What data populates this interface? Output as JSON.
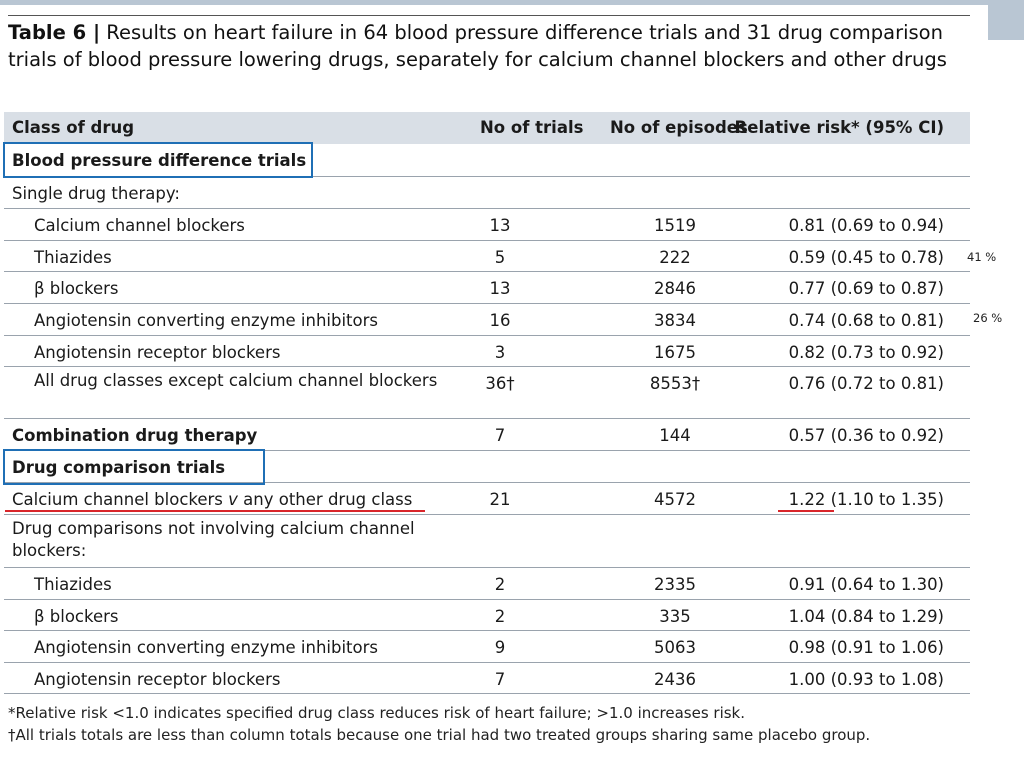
{
  "table": {
    "number": "Table 6 |",
    "title": " Results on heart failure in 64 blood pressure difference trials and 31 drug comparison trials of blood pressure lowering drugs, separately for calcium channel blockers and other drugs",
    "columns": {
      "class": "Class of drug",
      "trials": "No of trials",
      "episodes": "No of episodes",
      "rr": "Relative risk* (95% CI)"
    },
    "rows": [
      {
        "label": "Blood pressure difference trials",
        "trials": "",
        "episodes": "",
        "rr": ""
      },
      {
        "label": "Single drug therapy:",
        "trials": "",
        "episodes": "",
        "rr": ""
      },
      {
        "label": "Calcium channel blockers",
        "trials": "13",
        "episodes": "1519",
        "rr": "0.81 (0.69 to 0.94)"
      },
      {
        "label": "Thiazides",
        "trials": "5",
        "episodes": "222",
        "rr": "0.59 (0.45 to 0.78)"
      },
      {
        "label": "β blockers",
        "trials": "13",
        "episodes": "2846",
        "rr": "0.77 (0.69 to 0.87)"
      },
      {
        "label": "Angiotensin converting enzyme inhibitors",
        "trials": "16",
        "episodes": "3834",
        "rr": "0.74 (0.68 to 0.81)"
      },
      {
        "label": "Angiotensin receptor blockers",
        "trials": "3",
        "episodes": "1675",
        "rr": "0.82 (0.73 to 0.92)"
      },
      {
        "label": "All drug classes except calcium channel blockers",
        "trials": "36†",
        "episodes": "8553†",
        "rr": "0.76 (0.72 to 0.81)"
      },
      {
        "label": "Combination drug therapy",
        "trials": "7",
        "episodes": "144",
        "rr": "0.57 (0.36 to 0.92)"
      },
      {
        "label": "Drug comparison trials",
        "trials": "",
        "episodes": "",
        "rr": ""
      },
      {
        "label_a": "Calcium channel blockers ",
        "label_v": "v",
        "label_b": " any other drug class",
        "trials": "21",
        "episodes": "4572",
        "rr": "1.22 (1.10 to 1.35)"
      },
      {
        "label": "Drug comparisons not involving calcium channel blockers:",
        "trials": "",
        "episodes": "",
        "rr": ""
      },
      {
        "label": "Thiazides",
        "trials": "2",
        "episodes": "2335",
        "rr": "0.91 (0.64 to 1.30)"
      },
      {
        "label": "β blockers",
        "trials": "2",
        "episodes": "335",
        "rr": "1.04 (0.84 to 1.29)"
      },
      {
        "label": "Angiotensin converting enzyme inhibitors",
        "trials": "9",
        "episodes": "5063",
        "rr": "0.98 (0.91 to 1.06)"
      },
      {
        "label": "Angiotensin receptor blockers",
        "trials": "7",
        "episodes": "2436",
        "rr": "1.00 (0.93 to 1.08)"
      }
    ],
    "footnotes": [
      "*Relative risk <1.0 indicates specified drug class reduces risk of heart failure; >1.0 increases risk.",
      "†All trials totals are less than column totals because one trial had two treated groups sharing same placebo group."
    ]
  },
  "annotations": {
    "note_thiazides": "41 %",
    "note_ace": "26 %"
  },
  "colors": {
    "header_bg": "#d9dfe6",
    "box_blue": "#1f6fb5",
    "underline_red": "#d9252a",
    "corner_accent": "#b9c6d3"
  }
}
